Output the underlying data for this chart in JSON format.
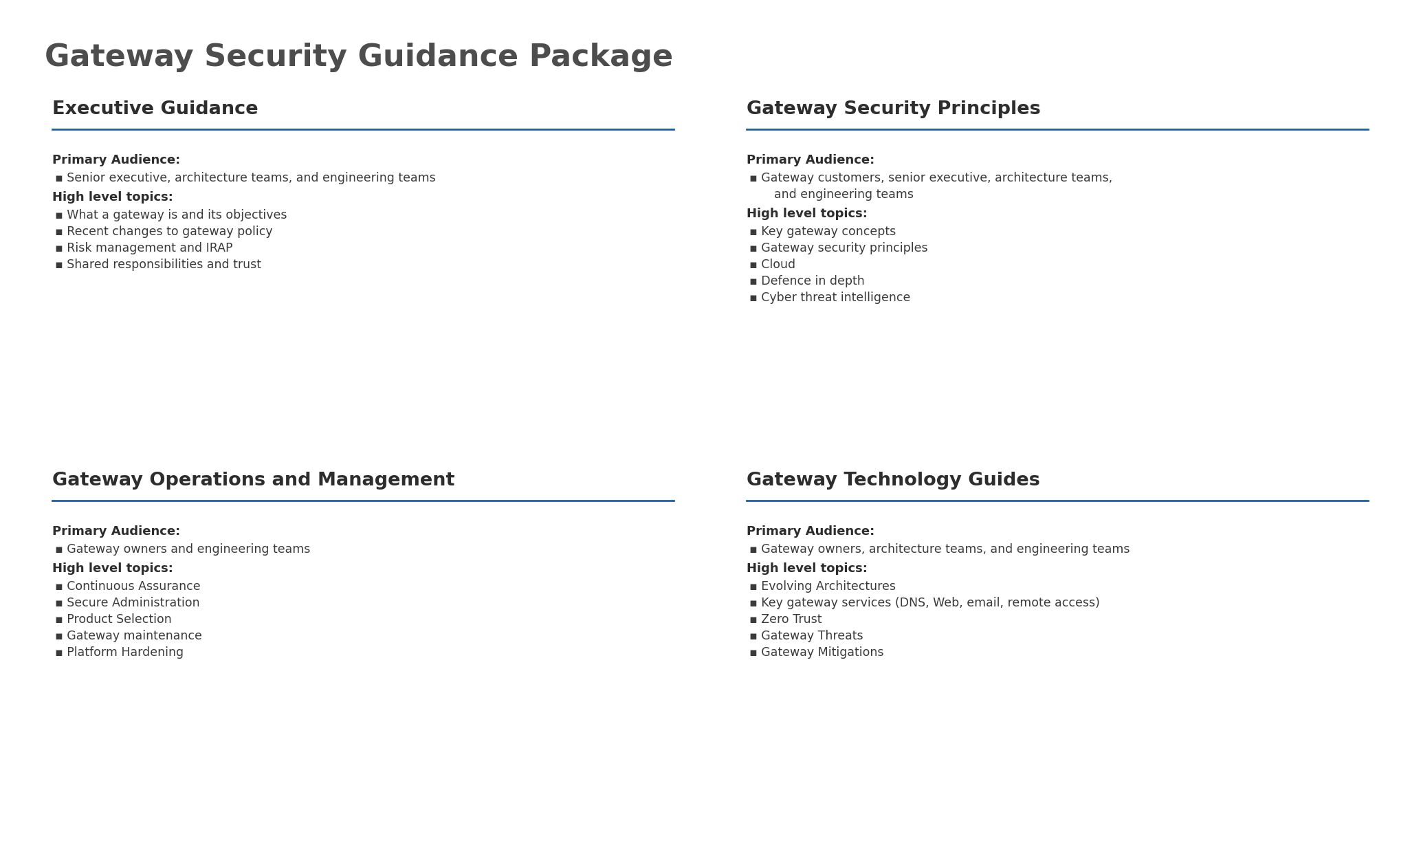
{
  "title": "Gateway Security Guidance Package",
  "title_color": "#4d4d4d",
  "title_fontsize": 32,
  "bg_color": "#ffffff",
  "card_bg_color": "#efefef",
  "line_color": "#1a5ea8",
  "heading_color": "#2d2d2d",
  "text_color": "#3a3a3a",
  "cards": [
    {
      "title": "Executive Guidance",
      "col": 0,
      "row": 0,
      "audience_lines": [
        "Senior executive, architecture teams, and engineering teams"
      ],
      "topics": [
        "What a gateway is and its objectives",
        "Recent changes to gateway policy",
        "Risk management and IRAP",
        "Shared responsibilities and trust"
      ]
    },
    {
      "title": "Gateway Security Principles",
      "col": 1,
      "row": 0,
      "audience_lines": [
        "Gateway customers, senior executive, architecture teams,",
        "    and engineering teams"
      ],
      "topics": [
        "Key gateway concepts",
        "Gateway security principles",
        "Cloud",
        "Defence in depth",
        "Cyber threat intelligence"
      ]
    },
    {
      "title": "Gateway Operations and Management",
      "col": 0,
      "row": 1,
      "audience_lines": [
        "Gateway owners and engineering teams"
      ],
      "topics": [
        "Continuous Assurance",
        "Secure Administration",
        "Product Selection",
        "Gateway maintenance",
        "Platform Hardening"
      ]
    },
    {
      "title": "Gateway Technology Guides",
      "col": 1,
      "row": 1,
      "audience_lines": [
        "Gateway owners, architecture teams, and engineering teams"
      ],
      "topics": [
        "Evolving Architectures",
        "Key gateway services (DNS, Web, email, remote access)",
        "Zero Trust",
        "Gateway Threats",
        "Gateway Mitigations"
      ]
    }
  ]
}
